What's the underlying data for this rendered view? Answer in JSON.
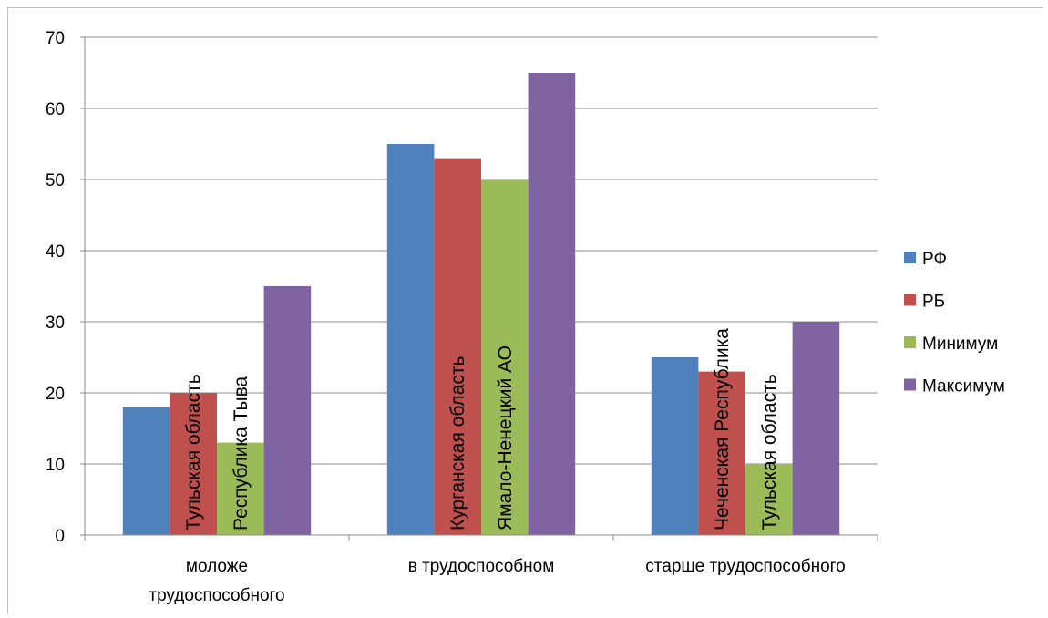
{
  "chart_data": {
    "type": "bar",
    "title": "",
    "xlabel": "",
    "ylabel": "",
    "ylim": [
      0,
      70
    ],
    "yticks": [
      0,
      10,
      20,
      30,
      40,
      50,
      60,
      70
    ],
    "grid": true,
    "legend_position": "right",
    "categories": [
      [
        "моложе",
        "трудоспособного"
      ],
      [
        "в трудоспособном"
      ],
      [
        "старше трудоспособного"
      ]
    ],
    "series": [
      {
        "name": "РФ",
        "color": "#4f81bd",
        "values": [
          18,
          55,
          25
        ],
        "bar_labels": [
          "",
          "",
          ""
        ]
      },
      {
        "name": "РБ",
        "color": "#c0504d",
        "values": [
          20,
          53,
          23
        ],
        "bar_labels": [
          "Тульская область",
          "Курганская область",
          "Чеченская Республика"
        ]
      },
      {
        "name": "Минимум",
        "color": "#9bbb59",
        "values": [
          13,
          50,
          10
        ],
        "bar_labels": [
          "Республика Тыва",
          "Ямало-Ненецкий АО",
          "Тульская область"
        ]
      },
      {
        "name": "Максимум",
        "color": "#8064a2",
        "values": [
          35,
          65,
          30
        ],
        "bar_labels": [
          "",
          "",
          ""
        ]
      }
    ]
  }
}
